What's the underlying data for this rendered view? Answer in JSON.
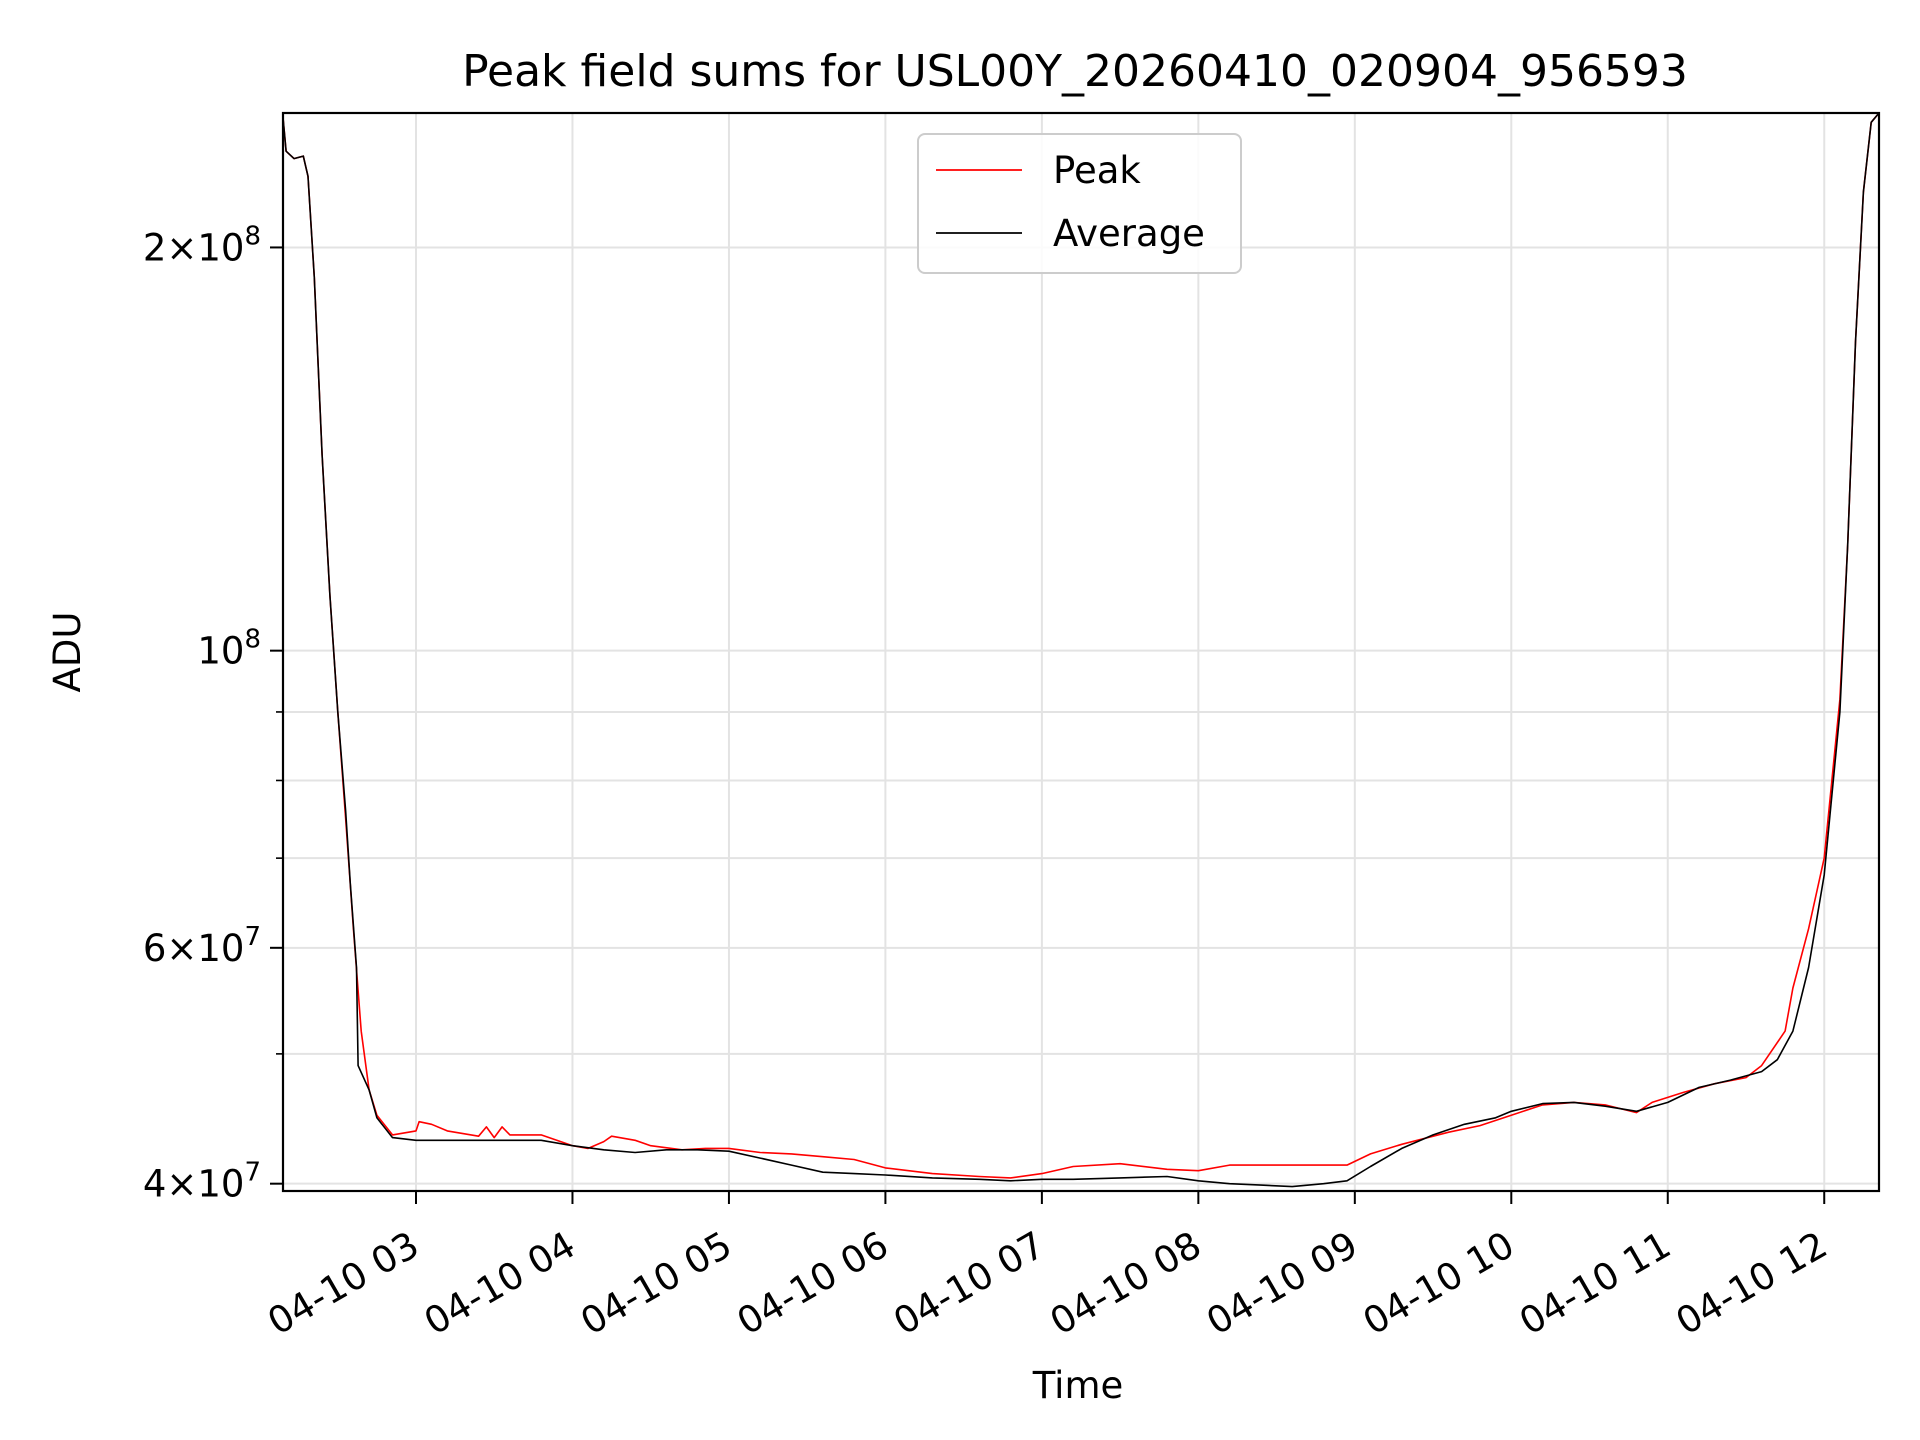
{
  "chart_data": {
    "type": "line",
    "title": "Peak field sums for USL00Y_20260410_020904_956593",
    "xlabel": "Time",
    "ylabel": "ADU",
    "yscale": "log",
    "xlim": [
      2.15,
      12.35
    ],
    "ylim": [
      39500000,
      252000000
    ],
    "x_unit": "hours since 2026-04-10 00:00",
    "x_ticks": [
      {
        "value": 3,
        "label": "04-10 03"
      },
      {
        "value": 4,
        "label": "04-10 04"
      },
      {
        "value": 5,
        "label": "04-10 05"
      },
      {
        "value": 6,
        "label": "04-10 06"
      },
      {
        "value": 7,
        "label": "04-10 07"
      },
      {
        "value": 8,
        "label": "04-10 08"
      },
      {
        "value": 9,
        "label": "04-10 09"
      },
      {
        "value": 10,
        "label": "04-10 10"
      },
      {
        "value": 11,
        "label": "04-10 11"
      },
      {
        "value": 12,
        "label": "04-10 12"
      }
    ],
    "y_ticks": [
      {
        "value": 40000000,
        "mantissa": "4",
        "exponent": "7"
      },
      {
        "value": 60000000,
        "mantissa": "6",
        "exponent": "7"
      },
      {
        "value": 100000000,
        "mantissa": "",
        "exponent": "8"
      },
      {
        "value": 200000000,
        "mantissa": "2",
        "exponent": "8"
      }
    ],
    "y_minor_ticks": [
      50000000,
      70000000,
      80000000,
      90000000
    ],
    "grid": true,
    "legend_position": "top-center",
    "series": [
      {
        "name": "Peak",
        "color": "#ff0000",
        "points": [
          [
            2.15,
            250000000
          ],
          [
            2.17,
            236000000
          ],
          [
            2.22,
            233000000
          ],
          [
            2.28,
            234000000
          ],
          [
            2.31,
            226000000
          ],
          [
            2.35,
            190000000
          ],
          [
            2.4,
            140000000
          ],
          [
            2.45,
            110000000
          ],
          [
            2.5,
            90000000
          ],
          [
            2.55,
            75000000
          ],
          [
            2.6,
            62000000
          ],
          [
            2.65,
            52000000
          ],
          [
            2.7,
            47000000
          ],
          [
            2.75,
            45000000
          ],
          [
            2.85,
            43500000
          ],
          [
            3.0,
            43800000
          ],
          [
            3.02,
            44500000
          ],
          [
            3.1,
            44300000
          ],
          [
            3.2,
            43800000
          ],
          [
            3.4,
            43400000
          ],
          [
            3.45,
            44100000
          ],
          [
            3.5,
            43300000
          ],
          [
            3.55,
            44100000
          ],
          [
            3.6,
            43500000
          ],
          [
            3.8,
            43500000
          ],
          [
            4.0,
            42700000
          ],
          [
            4.1,
            42500000
          ],
          [
            4.2,
            43000000
          ],
          [
            4.25,
            43400000
          ],
          [
            4.4,
            43100000
          ],
          [
            4.5,
            42700000
          ],
          [
            4.7,
            42400000
          ],
          [
            4.85,
            42500000
          ],
          [
            5.0,
            42500000
          ],
          [
            5.2,
            42200000
          ],
          [
            5.4,
            42100000
          ],
          [
            5.6,
            41900000
          ],
          [
            5.8,
            41700000
          ],
          [
            6.0,
            41100000
          ],
          [
            6.3,
            40700000
          ],
          [
            6.6,
            40500000
          ],
          [
            6.8,
            40400000
          ],
          [
            7.0,
            40700000
          ],
          [
            7.2,
            41200000
          ],
          [
            7.5,
            41400000
          ],
          [
            7.8,
            41000000
          ],
          [
            8.0,
            40900000
          ],
          [
            8.2,
            41300000
          ],
          [
            8.5,
            41300000
          ],
          [
            8.8,
            41300000
          ],
          [
            8.95,
            41300000
          ],
          [
            9.1,
            42100000
          ],
          [
            9.3,
            42800000
          ],
          [
            9.6,
            43700000
          ],
          [
            9.8,
            44200000
          ],
          [
            10.0,
            45000000
          ],
          [
            10.2,
            45800000
          ],
          [
            10.4,
            46000000
          ],
          [
            10.6,
            45800000
          ],
          [
            10.8,
            45200000
          ],
          [
            10.9,
            46000000
          ],
          [
            11.1,
            46800000
          ],
          [
            11.3,
            47500000
          ],
          [
            11.5,
            48000000
          ],
          [
            11.6,
            49000000
          ],
          [
            11.75,
            52000000
          ],
          [
            11.8,
            56000000
          ],
          [
            11.9,
            62000000
          ],
          [
            12.0,
            70000000
          ],
          [
            12.1,
            92000000
          ],
          [
            12.15,
            120000000
          ],
          [
            12.2,
            170000000
          ],
          [
            12.25,
            220000000
          ],
          [
            12.3,
            248000000
          ],
          [
            12.35,
            252000000
          ]
        ]
      },
      {
        "name": "Average",
        "color": "#000000",
        "points": [
          [
            2.15,
            250000000
          ],
          [
            2.17,
            236000000
          ],
          [
            2.22,
            233000000
          ],
          [
            2.28,
            234000000
          ],
          [
            2.31,
            226000000
          ],
          [
            2.35,
            190000000
          ],
          [
            2.4,
            140000000
          ],
          [
            2.45,
            110000000
          ],
          [
            2.5,
            90000000
          ],
          [
            2.55,
            76000000
          ],
          [
            2.58,
            67000000
          ],
          [
            2.62,
            58000000
          ],
          [
            2.63,
            49000000
          ],
          [
            2.7,
            47000000
          ],
          [
            2.75,
            44800000
          ],
          [
            2.85,
            43300000
          ],
          [
            3.0,
            43100000
          ],
          [
            3.2,
            43100000
          ],
          [
            3.4,
            43100000
          ],
          [
            3.6,
            43100000
          ],
          [
            3.8,
            43100000
          ],
          [
            4.0,
            42700000
          ],
          [
            4.2,
            42400000
          ],
          [
            4.4,
            42200000
          ],
          [
            4.6,
            42400000
          ],
          [
            4.8,
            42400000
          ],
          [
            5.0,
            42300000
          ],
          [
            5.2,
            41800000
          ],
          [
            5.4,
            41300000
          ],
          [
            5.6,
            40800000
          ],
          [
            5.8,
            40700000
          ],
          [
            6.0,
            40600000
          ],
          [
            6.3,
            40400000
          ],
          [
            6.6,
            40300000
          ],
          [
            6.8,
            40200000
          ],
          [
            7.0,
            40300000
          ],
          [
            7.2,
            40300000
          ],
          [
            7.5,
            40400000
          ],
          [
            7.8,
            40500000
          ],
          [
            8.0,
            40200000
          ],
          [
            8.2,
            40000000
          ],
          [
            8.4,
            39900000
          ],
          [
            8.6,
            39800000
          ],
          [
            8.8,
            40000000
          ],
          [
            8.95,
            40200000
          ],
          [
            9.1,
            41200000
          ],
          [
            9.3,
            42500000
          ],
          [
            9.5,
            43500000
          ],
          [
            9.7,
            44300000
          ],
          [
            9.9,
            44800000
          ],
          [
            10.0,
            45300000
          ],
          [
            10.2,
            45900000
          ],
          [
            10.4,
            46000000
          ],
          [
            10.6,
            45700000
          ],
          [
            10.8,
            45300000
          ],
          [
            11.0,
            46000000
          ],
          [
            11.2,
            47200000
          ],
          [
            11.4,
            47800000
          ],
          [
            11.6,
            48500000
          ],
          [
            11.7,
            49500000
          ],
          [
            11.8,
            52000000
          ],
          [
            11.9,
            58000000
          ],
          [
            12.0,
            68000000
          ],
          [
            12.1,
            90000000
          ],
          [
            12.15,
            120000000
          ],
          [
            12.2,
            170000000
          ],
          [
            12.25,
            220000000
          ],
          [
            12.3,
            248000000
          ],
          [
            12.35,
            252000000
          ]
        ]
      }
    ]
  }
}
